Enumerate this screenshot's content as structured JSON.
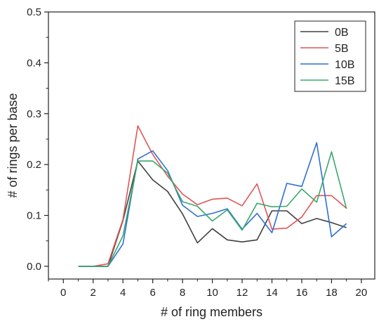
{
  "chart_data": {
    "type": "line",
    "title": "",
    "xlabel": "# of ring members",
    "ylabel": "# of rings per base",
    "xlim": [
      -1,
      20.9
    ],
    "ylim": [
      -0.025,
      0.5
    ],
    "x_ticks": [
      0,
      2,
      4,
      6,
      8,
      10,
      12,
      14,
      16,
      18,
      20
    ],
    "x_minor_ticks": [
      -1,
      1,
      3,
      5,
      7,
      9,
      11,
      13,
      15,
      17,
      19
    ],
    "y_ticks": [
      0.0,
      0.1,
      0.2,
      0.3,
      0.4,
      0.5
    ],
    "y_tick_labels": [
      "0.0",
      "0.1",
      "0.2",
      "0.3",
      "0.4",
      "0.5"
    ],
    "grid": false,
    "legend_position": "top-right",
    "x": [
      1,
      2,
      3,
      4,
      5,
      6,
      7,
      8,
      9,
      10,
      11,
      12,
      13,
      14,
      15,
      16,
      17,
      18,
      19
    ],
    "series": [
      {
        "name": "0B",
        "color": "#404040",
        "values": [
          0.0,
          0.0,
          0.0,
          0.09,
          0.207,
          0.17,
          0.147,
          0.103,
          0.046,
          0.074,
          0.052,
          0.048,
          0.052,
          0.109,
          0.109,
          0.084,
          0.094,
          0.086,
          0.076
        ]
      },
      {
        "name": "5B",
        "color": "#e05555",
        "values": [
          0.0,
          0.0,
          0.005,
          0.092,
          0.276,
          0.22,
          0.177,
          0.142,
          0.121,
          0.132,
          0.134,
          0.119,
          0.162,
          0.073,
          0.075,
          0.097,
          0.139,
          0.139,
          0.114
        ]
      },
      {
        "name": "10B",
        "color": "#2e6fd3",
        "values": [
          0.0,
          0.0,
          0.0,
          0.044,
          0.211,
          0.227,
          0.188,
          0.12,
          0.098,
          0.104,
          0.113,
          0.073,
          0.104,
          0.066,
          0.163,
          0.157,
          0.243,
          0.058,
          0.084
        ]
      },
      {
        "name": "15B",
        "color": "#3aa86a",
        "values": [
          0.0,
          0.0,
          0.0,
          0.06,
          0.207,
          0.207,
          0.183,
          0.127,
          0.118,
          0.089,
          0.111,
          0.071,
          0.124,
          0.117,
          0.118,
          0.152,
          0.126,
          0.225,
          0.113
        ]
      }
    ]
  }
}
